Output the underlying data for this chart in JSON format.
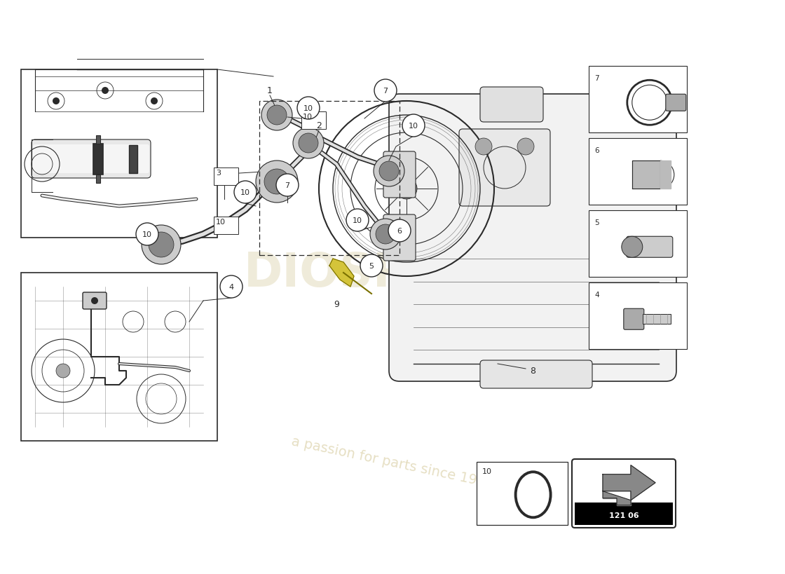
{
  "background_color": "#ffffff",
  "line_color": "#2a2a2a",
  "watermark_color1": "#c8b87a",
  "watermark_color2": "#c8b87a",
  "watermark_text1": "DIOSPARES",
  "watermark_text2": "a passion for parts since 1985",
  "part_number_text": "121 06",
  "fig_width": 11.0,
  "fig_height": 8.0,
  "dpi": 100
}
